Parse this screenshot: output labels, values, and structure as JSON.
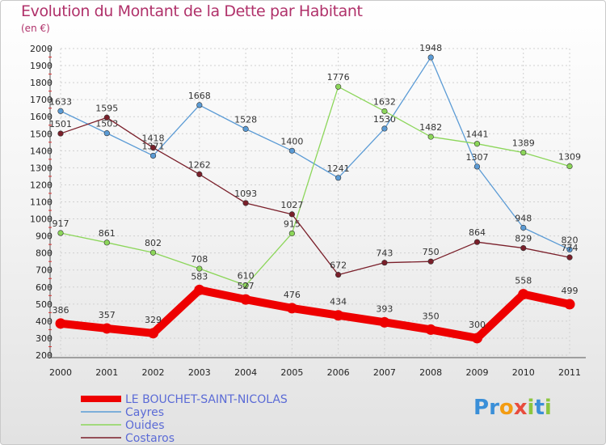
{
  "header": {
    "title": "Evolution du Montant de la Dette par Habitant",
    "unit": "(en €)"
  },
  "logo": {
    "letters": [
      "P",
      "r",
      "o",
      "x",
      "i",
      "t",
      "i"
    ],
    "colors": [
      "#3a8fd8",
      "#3a8fd8",
      "#f39c12",
      "#e84c3d",
      "#8cc63f",
      "#3a8fd8",
      "#8cc63f"
    ]
  },
  "chart_data": {
    "type": "line",
    "title": "Evolution du Montant de la Dette par Habitant",
    "ylabel": "(en €)",
    "xlabel": "",
    "x": [
      "2000",
      "2001",
      "2002",
      "2003",
      "2004",
      "2005",
      "2006",
      "2007",
      "2008",
      "2009",
      "2010",
      "2011"
    ],
    "ylim": [
      200,
      2000
    ],
    "yticks": [
      200,
      300,
      400,
      500,
      600,
      700,
      800,
      900,
      1000,
      1100,
      1200,
      1300,
      1400,
      1500,
      1600,
      1700,
      1800,
      1900,
      2000
    ],
    "grid": true,
    "legend_position": "bottom-left",
    "series": [
      {
        "name": "LE BOUCHET-SAINT-NICOLAS",
        "values": [
          386,
          357,
          329,
          583,
          527,
          476,
          434,
          393,
          350,
          300,
          558,
          499
        ],
        "color": "#ee0000",
        "emphasis": true
      },
      {
        "name": "Cayres",
        "values": [
          1633,
          1503,
          1371,
          1668,
          1528,
          1400,
          1241,
          1530,
          1948,
          1307,
          948,
          820
        ],
        "labels": [
          "1633",
          "1503",
          "1371",
          "1668",
          "1528",
          "1400",
          "1241",
          "1530",
          "1948",
          "1307",
          "948",
          "820"
        ],
        "color": "#5b9bd5",
        "emphasis": false
      },
      {
        "name": "Ouides",
        "values": [
          917,
          861,
          802,
          708,
          610,
          915,
          1776,
          1632,
          1482,
          1441,
          1389,
          1309
        ],
        "color": "#8cd65a",
        "emphasis": false
      },
      {
        "name": "Costaros",
        "values": [
          1501,
          1595,
          1418,
          1262,
          1093,
          1027,
          672,
          743,
          750,
          864,
          829,
          774
        ],
        "labels": [
          "1501",
          "1595",
          "1418",
          "1262",
          "1093",
          "1027",
          "672",
          "743",
          "750",
          "864",
          "829",
          "774"
        ],
        "color": "#7a1f2a",
        "emphasis": false
      }
    ]
  }
}
